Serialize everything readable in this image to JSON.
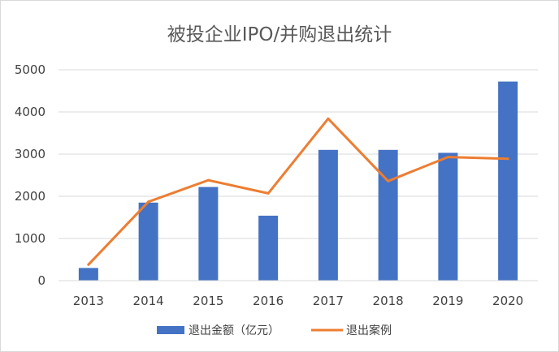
{
  "chart_data": {
    "type": "bar",
    "title": "被投企业IPO/并购退出统计",
    "categories": [
      "2013",
      "2014",
      "2015",
      "2016",
      "2017",
      "2018",
      "2019",
      "2020"
    ],
    "series": [
      {
        "name": "退出金额（亿元）",
        "type": "bar",
        "color": "#4472C4",
        "values": [
          300,
          1850,
          2220,
          1540,
          3100,
          3100,
          3030,
          4720
        ]
      },
      {
        "name": "退出案例",
        "type": "line",
        "color": "#ED7D31",
        "values": [
          380,
          1870,
          2380,
          2070,
          3840,
          2360,
          2930,
          2890
        ]
      }
    ],
    "ylim": [
      0,
      5000
    ],
    "yticks": [
      "0",
      "1000",
      "2000",
      "3000",
      "4000",
      "5000"
    ],
    "grid": true,
    "legend_position": "bottom"
  }
}
